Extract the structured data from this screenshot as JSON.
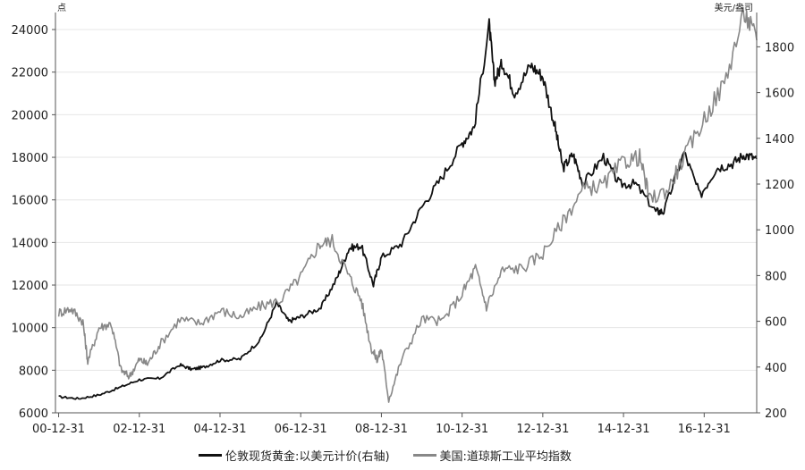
{
  "chart_data": {
    "type": "line",
    "left_unit": "点",
    "right_unit": "美元/盎司",
    "x_ticks": [
      "00-12-31",
      "02-12-31",
      "04-12-31",
      "06-12-31",
      "08-12-31",
      "10-12-31",
      "12-12-31",
      "14-12-31",
      "16-12-31"
    ],
    "xlim": [
      2000.92,
      2018.3
    ],
    "ylim_left": [
      6000,
      24800
    ],
    "yticks_left": [
      6000,
      8000,
      10000,
      12000,
      14000,
      16000,
      18000,
      20000,
      22000,
      24000
    ],
    "ylim_right": [
      200,
      1950
    ],
    "yticks_right": [
      200,
      400,
      600,
      800,
      1000,
      1200,
      1400,
      1600,
      1800
    ],
    "series": [
      {
        "name": "伦敦现货黄金:以美元计价(右轴)",
        "axis": "right",
        "color": "#111111",
        "x": [
          2001.0,
          2001.5,
          2002.0,
          2002.5,
          2003.0,
          2003.5,
          2004.0,
          2004.3,
          2004.6,
          2005.0,
          2005.5,
          2006.0,
          2006.4,
          2006.7,
          2007.0,
          2007.5,
          2007.9,
          2008.2,
          2008.5,
          2008.8,
          2009.0,
          2009.5,
          2010.0,
          2010.5,
          2011.0,
          2011.3,
          2011.67,
          2011.8,
          2012.0,
          2012.3,
          2012.7,
          2013.0,
          2013.3,
          2013.5,
          2013.75,
          2014.0,
          2014.5,
          2014.9,
          2015.3,
          2015.8,
          2016.0,
          2016.5,
          2016.9,
          2017.3,
          2017.7,
          2018.0,
          2018.3
        ],
        "y": [
          270,
          262,
          278,
          310,
          345,
          350,
          410,
          390,
          400,
          430,
          435,
          520,
          680,
          600,
          620,
          660,
          790,
          920,
          930,
          760,
          880,
          940,
          1100,
          1230,
          1380,
          1450,
          1895,
          1650,
          1730,
          1600,
          1720,
          1670,
          1450,
          1270,
          1330,
          1200,
          1320,
          1200,
          1200,
          1080,
          1080,
          1340,
          1150,
          1270,
          1290,
          1330,
          1310
        ]
      },
      {
        "name": "美国:道琼斯工业平均指数",
        "axis": "left",
        "color": "#888888",
        "x": [
          2001.0,
          2001.3,
          2001.6,
          2001.72,
          2002.0,
          2002.3,
          2002.55,
          2002.75,
          2003.0,
          2003.2,
          2003.5,
          2004.0,
          2004.5,
          2005.0,
          2005.5,
          2006.0,
          2006.5,
          2007.0,
          2007.45,
          2007.78,
          2008.2,
          2008.5,
          2008.75,
          2008.9,
          2009.0,
          2009.18,
          2009.5,
          2010.0,
          2010.5,
          2011.0,
          2011.33,
          2011.6,
          2012.0,
          2012.5,
          2013.0,
          2013.5,
          2014.0,
          2014.5,
          2015.0,
          2015.4,
          2015.65,
          2016.1,
          2016.5,
          2017.0,
          2017.5,
          2018.0,
          2018.3
        ],
        "y": [
          10700,
          10900,
          10300,
          8400,
          10000,
          10200,
          8000,
          7700,
          8500,
          8300,
          9200,
          10400,
          10200,
          10800,
          10500,
          11000,
          11300,
          12400,
          13900,
          14100,
          12400,
          11300,
          9000,
          8500,
          9000,
          6600,
          8500,
          10400,
          10300,
          11600,
          12800,
          11000,
          12700,
          12800,
          13500,
          15000,
          16500,
          16700,
          17800,
          18000,
          16000,
          16500,
          18000,
          19800,
          21500,
          24800,
          23500
        ]
      }
    ]
  }
}
